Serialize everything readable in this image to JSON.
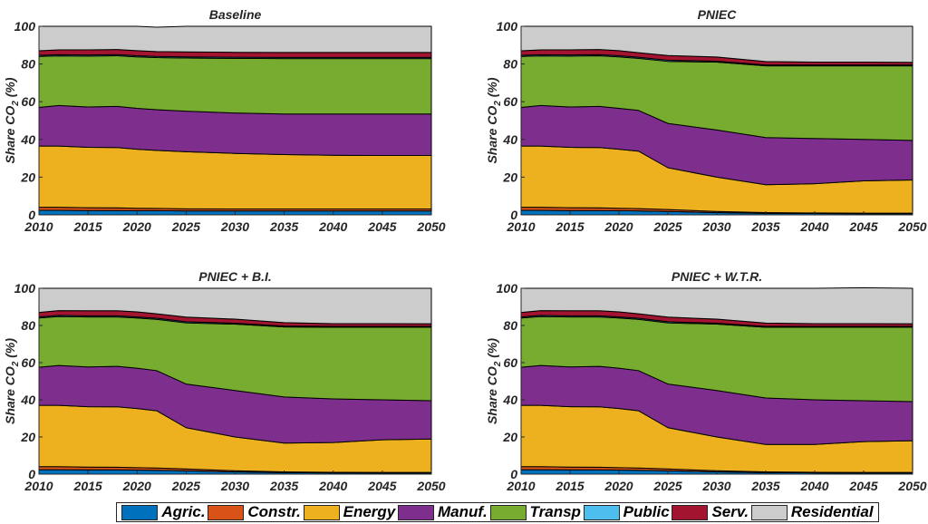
{
  "colors": {
    "Agric.": "#0072BD",
    "Constr.": "#D95319",
    "Energy": "#EDB120",
    "Manuf.": "#7E2F8E",
    "Transp": "#77AC30",
    "Public": "#4DBEEE",
    "Serv.": "#A2142F",
    "Residential": "#CCCCCC"
  },
  "legend": [
    "Agric.",
    "Constr.",
    "Energy",
    "Manuf.",
    "Transp",
    "Public",
    "Serv.",
    "Residential"
  ],
  "chart_data": [
    {
      "type": "area",
      "title": "Baseline",
      "ylabel": "Share CO",
      "ylabel_sub": "2",
      "ylabel_unit": "(%)",
      "x": [
        2010,
        2012,
        2015,
        2018,
        2020,
        2022,
        2025,
        2030,
        2035,
        2040,
        2045,
        2050
      ],
      "xticks": [
        2010,
        2015,
        2020,
        2025,
        2030,
        2035,
        2040,
        2045,
        2050
      ],
      "yticks": [
        0,
        20,
        40,
        60,
        80,
        100
      ],
      "ylim": [
        0,
        100
      ],
      "series": [
        {
          "name": "Agric.",
          "values": [
            2.4,
            2.4,
            2.3,
            2.3,
            2.2,
            2.2,
            2.1,
            2.1,
            2.1,
            2.1,
            2.1,
            2.1
          ]
        },
        {
          "name": "Constr.",
          "values": [
            1.6,
            1.6,
            1.5,
            1.4,
            1.3,
            1.2,
            1.1,
            1.0,
            1.0,
            1.0,
            1.0,
            1.0
          ]
        },
        {
          "name": "Energy",
          "values": [
            32.5,
            32.5,
            32.0,
            32.0,
            31.3,
            30.8,
            30.3,
            29.5,
            28.9,
            28.5,
            28.4,
            28.4
          ]
        },
        {
          "name": "Manuf.",
          "values": [
            20.5,
            21.5,
            21.4,
            21.8,
            21.7,
            21.6,
            21.5,
            21.4,
            21.5,
            21.9,
            22.0,
            22.0
          ]
        },
        {
          "name": "Transp",
          "values": [
            27.0,
            26.3,
            27.0,
            26.9,
            27.3,
            27.6,
            28.2,
            29.0,
            29.4,
            29.4,
            29.4,
            29.4
          ]
        },
        {
          "name": "Public",
          "values": [
            0.6,
            0.6,
            0.6,
            0.6,
            0.6,
            0.6,
            0.6,
            0.6,
            0.6,
            0.6,
            0.6,
            0.6
          ]
        },
        {
          "name": "Serv.",
          "values": [
            2.4,
            2.6,
            2.7,
            2.7,
            2.7,
            2.6,
            2.6,
            2.6,
            2.6,
            2.6,
            2.6,
            2.6
          ]
        },
        {
          "name": "Residential",
          "values": [
            13.0,
            12.5,
            12.5,
            12.3,
            12.9,
            12.9,
            13.6,
            13.8,
            13.9,
            13.9,
            13.9,
            13.9
          ]
        }
      ]
    },
    {
      "type": "area",
      "title": "PNIEC",
      "ylabel": "Share CO",
      "ylabel_sub": "2",
      "ylabel_unit": "(%)",
      "x": [
        2010,
        2012,
        2015,
        2018,
        2020,
        2022,
        2025,
        2030,
        2035,
        2040,
        2045,
        2050
      ],
      "xticks": [
        2010,
        2015,
        2020,
        2025,
        2030,
        2035,
        2040,
        2045,
        2050
      ],
      "yticks": [
        0,
        20,
        40,
        60,
        80,
        100
      ],
      "ylim": [
        0,
        100
      ],
      "series": [
        {
          "name": "Agric.",
          "values": [
            2.4,
            2.4,
            2.3,
            2.3,
            2.2,
            2.1,
            1.8,
            1.2,
            0.8,
            0.7,
            0.6,
            0.6
          ]
        },
        {
          "name": "Constr.",
          "values": [
            1.6,
            1.6,
            1.5,
            1.4,
            1.3,
            1.2,
            1.0,
            0.6,
            0.4,
            0.3,
            0.3,
            0.3
          ]
        },
        {
          "name": "Energy",
          "values": [
            32.5,
            32.5,
            32.0,
            32.0,
            31.3,
            30.5,
            22.2,
            18.2,
            14.8,
            15.5,
            17.1,
            17.6
          ]
        },
        {
          "name": "Manuf.",
          "values": [
            20.5,
            21.5,
            21.4,
            21.8,
            21.7,
            21.6,
            23.5,
            25.0,
            25.0,
            24.0,
            22.0,
            21.0
          ]
        },
        {
          "name": "Transp",
          "values": [
            27.0,
            26.3,
            27.0,
            26.9,
            27.3,
            27.6,
            32.9,
            36.0,
            38.0,
            38.5,
            39.0,
            39.5
          ]
        },
        {
          "name": "Public",
          "values": [
            0.6,
            0.6,
            0.6,
            0.6,
            0.6,
            0.6,
            0.6,
            0.5,
            0.5,
            0.5,
            0.5,
            0.5
          ]
        },
        {
          "name": "Serv.",
          "values": [
            2.4,
            2.6,
            2.7,
            2.7,
            2.7,
            2.4,
            2.5,
            2.2,
            1.8,
            1.5,
            1.5,
            1.4
          ]
        },
        {
          "name": "Residential",
          "values": [
            13.0,
            12.5,
            12.5,
            12.3,
            12.9,
            14.0,
            15.5,
            16.3,
            18.7,
            19.0,
            19.0,
            19.1
          ]
        }
      ]
    },
    {
      "type": "area",
      "title": "PNIEC + B.I.",
      "ylabel": "Share CO",
      "ylabel_sub": "2",
      "ylabel_unit": "(%)",
      "x": [
        2010,
        2012,
        2015,
        2018,
        2020,
        2022,
        2025,
        2030,
        2035,
        2040,
        2045,
        2050
      ],
      "xticks": [
        2010,
        2015,
        2020,
        2025,
        2030,
        2035,
        2040,
        2045,
        2050
      ],
      "yticks": [
        0,
        20,
        40,
        60,
        80,
        100
      ],
      "ylim": [
        0,
        100
      ],
      "series": [
        {
          "name": "Agric.",
          "values": [
            2.4,
            2.4,
            2.3,
            2.3,
            2.2,
            2.1,
            1.8,
            1.2,
            0.8,
            0.7,
            0.6,
            0.6
          ]
        },
        {
          "name": "Constr.",
          "values": [
            1.6,
            1.6,
            1.5,
            1.4,
            1.3,
            1.2,
            1.0,
            0.6,
            0.4,
            0.3,
            0.3,
            0.3
          ]
        },
        {
          "name": "Energy",
          "values": [
            33.0,
            33.0,
            32.5,
            32.5,
            31.8,
            30.8,
            22.2,
            18.2,
            15.5,
            16.0,
            17.6,
            18.0
          ]
        },
        {
          "name": "Manuf.",
          "values": [
            20.5,
            21.5,
            21.4,
            21.8,
            21.7,
            21.6,
            23.5,
            25.0,
            24.8,
            23.5,
            21.5,
            20.6
          ]
        },
        {
          "name": "Transp",
          "values": [
            26.5,
            26.3,
            26.9,
            26.6,
            27.0,
            27.6,
            32.9,
            35.7,
            37.7,
            38.5,
            39.0,
            39.5
          ]
        },
        {
          "name": "Public",
          "values": [
            0.6,
            0.6,
            0.6,
            0.6,
            0.6,
            0.6,
            0.6,
            0.5,
            0.5,
            0.5,
            0.5,
            0.5
          ]
        },
        {
          "name": "Serv.",
          "values": [
            2.4,
            2.6,
            2.7,
            2.7,
            2.7,
            2.4,
            2.5,
            2.2,
            1.8,
            1.5,
            1.5,
            1.4
          ]
        },
        {
          "name": "Residential",
          "values": [
            13.0,
            12.0,
            12.1,
            12.1,
            12.7,
            13.7,
            15.5,
            16.6,
            18.5,
            19.0,
            19.0,
            19.1
          ]
        }
      ]
    },
    {
      "type": "area",
      "title": "PNIEC + W.T.R.",
      "ylabel": "Share CO",
      "ylabel_sub": "2",
      "ylabel_unit": "(%)",
      "x": [
        2010,
        2012,
        2015,
        2018,
        2020,
        2022,
        2025,
        2030,
        2035,
        2040,
        2045,
        2050
      ],
      "xticks": [
        2010,
        2015,
        2020,
        2025,
        2030,
        2035,
        2040,
        2045,
        2050
      ],
      "yticks": [
        0,
        20,
        40,
        60,
        80,
        100
      ],
      "ylim": [
        0,
        100
      ],
      "series": [
        {
          "name": "Agric.",
          "values": [
            2.4,
            2.4,
            2.3,
            2.3,
            2.2,
            2.1,
            1.8,
            1.2,
            0.8,
            0.7,
            0.6,
            0.6
          ]
        },
        {
          "name": "Constr.",
          "values": [
            1.6,
            1.6,
            1.5,
            1.4,
            1.3,
            1.2,
            1.0,
            0.6,
            0.4,
            0.3,
            0.3,
            0.3
          ]
        },
        {
          "name": "Energy",
          "values": [
            33.0,
            33.0,
            32.5,
            32.5,
            31.8,
            30.8,
            22.2,
            18.2,
            14.8,
            15.0,
            16.6,
            17.1
          ]
        },
        {
          "name": "Manuf.",
          "values": [
            20.5,
            21.5,
            21.4,
            21.8,
            21.7,
            21.6,
            23.5,
            25.0,
            25.0,
            24.0,
            22.0,
            21.0
          ]
        },
        {
          "name": "Transp",
          "values": [
            26.5,
            26.3,
            26.9,
            26.6,
            27.0,
            27.6,
            32.9,
            35.7,
            38.0,
            39.0,
            39.5,
            40.0
          ]
        },
        {
          "name": "Public",
          "values": [
            0.6,
            0.6,
            0.6,
            0.6,
            0.6,
            0.6,
            0.6,
            0.5,
            0.5,
            0.5,
            0.5,
            0.5
          ]
        },
        {
          "name": "Serv.",
          "values": [
            2.4,
            2.6,
            2.7,
            2.7,
            2.7,
            2.4,
            2.5,
            2.2,
            1.8,
            1.5,
            1.5,
            1.4
          ]
        },
        {
          "name": "Residential",
          "values": [
            13.0,
            12.0,
            12.1,
            12.1,
            12.7,
            13.7,
            15.5,
            16.6,
            18.7,
            19.0,
            19.3,
            19.1
          ]
        }
      ]
    }
  ]
}
